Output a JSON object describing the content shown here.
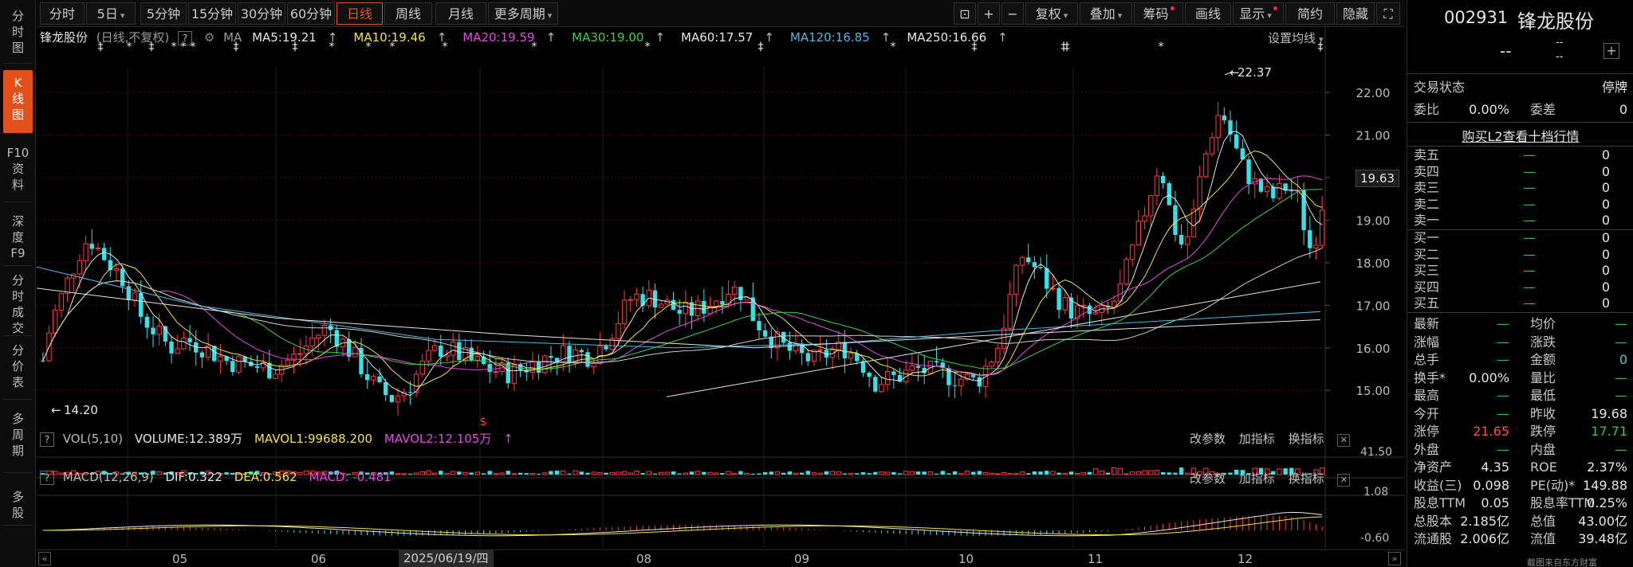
{
  "left_nav": [
    {
      "id": "fenshi",
      "lines": [
        "分",
        "时",
        "图"
      ],
      "active": false
    },
    {
      "id": "kline",
      "lines": [
        "K",
        "线",
        "图"
      ],
      "active": true
    },
    {
      "id": "f10",
      "lines": [
        "F10",
        "资",
        "料"
      ],
      "active": false
    },
    {
      "id": "depth",
      "lines": [
        "深",
        "度",
        "F9"
      ],
      "active": false
    },
    {
      "id": "trades",
      "lines": [
        "分",
        "时",
        "成",
        "交"
      ],
      "active": false
    },
    {
      "id": "pricetable",
      "lines": [
        "分",
        "价",
        "表"
      ],
      "active": false
    },
    {
      "id": "multiperiod",
      "lines": [
        "多",
        "周",
        "期"
      ],
      "active": false
    },
    {
      "id": "multistock",
      "lines": [
        "多",
        "股"
      ],
      "active": false
    }
  ],
  "toolbar": {
    "periods": [
      "分时",
      "5日",
      "5分钟",
      "15分钟",
      "30分钟",
      "60分钟",
      "日线",
      "周线",
      "月线",
      "更多周期"
    ],
    "active_period": "日线",
    "tools": [
      "复权",
      "叠加",
      "筹码",
      "画线",
      "显示",
      "简约",
      "隐藏"
    ]
  },
  "stock": {
    "name": "锋龙股份",
    "code": "002931",
    "mode": "(日线,不复权)"
  },
  "ma_legend": {
    "prefix": "MA",
    "items": [
      {
        "label": "MA5:19.21",
        "color": "#e6e6e6"
      },
      {
        "label": "MA10:19.46",
        "color": "#f2e24a"
      },
      {
        "label": "MA20:19.59",
        "color": "#e14be0"
      },
      {
        "label": "MA30:19.00",
        "color": "#3fd23f"
      },
      {
        "label": "MA60:17.57",
        "color": "#e6e6e6"
      },
      {
        "label": "MA120:16.85",
        "color": "#4fb7e8"
      },
      {
        "label": "MA250:16.66",
        "color": "#e6e6e6"
      }
    ],
    "arrow_up": "↑",
    "settings": "设置均线"
  },
  "price_chart": {
    "y_ticks": [
      "22.00",
      "21.00",
      "20.00",
      "19.00",
      "18.00",
      "17.00",
      "16.00",
      "15.00"
    ],
    "last_price": "19.63",
    "high_label": "22.37",
    "low_label": "14.20",
    "marker_star": "*",
    "marker_dagger": "‡",
    "dollar_marker": "$"
  },
  "volume_panel": {
    "name": "VOL(5,10)",
    "volume": "VOLUME:12.389万",
    "mavol1": "MAVOL1:99688.200",
    "mavol2": "MAVOL2:12.105万",
    "y_top": "41.50",
    "tools": [
      "改参数",
      "加指标",
      "换指标"
    ]
  },
  "macd_panel": {
    "name": "MACD(12,26,9)",
    "dif": "DIF:0.322",
    "dea": "DEA:0.562",
    "macd": "MACD: -0.481",
    "y_top": "1.08",
    "y_bottom": "-0.60",
    "tools": [
      "改参数",
      "加指标",
      "换指标"
    ]
  },
  "x_axis": {
    "months": [
      "05",
      "06",
      "08",
      "09",
      "10",
      "11",
      "12"
    ],
    "cursor_date": "2025/06/19/四"
  },
  "quote": {
    "price": "--",
    "change_top": "--",
    "change_bottom": "--",
    "status_label": "交易状态",
    "status_value": "停牌",
    "weibi_label": "委比",
    "weibi_value": "0.00%",
    "weicha_label": "委差",
    "weicha_value": "0",
    "l2_link": "购买L2查看十档行情",
    "asks": [
      {
        "name": "卖五",
        "price": "—",
        "vol": "0"
      },
      {
        "name": "卖四",
        "price": "—",
        "vol": "0"
      },
      {
        "name": "卖三",
        "price": "—",
        "vol": "0"
      },
      {
        "name": "卖二",
        "price": "—",
        "vol": "0"
      },
      {
        "name": "卖一",
        "price": "—",
        "vol": "0"
      }
    ],
    "bids": [
      {
        "name": "买一",
        "price": "—",
        "vol": "0"
      },
      {
        "name": "买二",
        "price": "—",
        "vol": "0"
      },
      {
        "name": "买三",
        "price": "—",
        "vol": "0"
      },
      {
        "name": "买四",
        "price": "—",
        "vol": "0"
      },
      {
        "name": "买五",
        "price": "—",
        "vol": "0"
      }
    ],
    "stats": [
      {
        "l1": "最新",
        "v1": "—",
        "c1": "green",
        "l2": "均价",
        "v2": "—",
        "c2": "green"
      },
      {
        "l1": "涨幅",
        "v1": "—",
        "c1": "green",
        "l2": "涨跌",
        "v2": "—",
        "c2": "green"
      },
      {
        "l1": "总手",
        "v1": "—",
        "c1": "green",
        "l2": "金额",
        "v2": "0",
        "c2": "cyan"
      },
      {
        "l1": "换手*",
        "v1": "0.00%",
        "c1": "white",
        "l2": "量比",
        "v2": "—",
        "c2": "green"
      },
      {
        "l1": "最高",
        "v1": "—",
        "c1": "green",
        "l2": "最低",
        "v2": "—",
        "c2": "green"
      },
      {
        "l1": "今开",
        "v1": "—",
        "c1": "green",
        "l2": "昨收",
        "v2": "19.68",
        "c2": "white"
      },
      {
        "l1": "涨停",
        "v1": "21.65",
        "c1": "red",
        "l2": "跌停",
        "v2": "17.71",
        "c2": "green"
      },
      {
        "l1": "外盘",
        "v1": "—",
        "c1": "green",
        "l2": "内盘",
        "v2": "—",
        "c2": "green"
      },
      {
        "l1": "净资产",
        "v1": "4.35",
        "c1": "white",
        "l2": "ROE",
        "v2": "2.37%",
        "c2": "white"
      },
      {
        "l1": "收益(三)",
        "v1": "0.098",
        "c1": "white",
        "l2": "PE(动)*",
        "v2": "149.88",
        "c2": "white"
      },
      {
        "l1": "股息TTM",
        "v1": "0.05",
        "c1": "white",
        "l2": "股息率TTM",
        "v2": "0.25%",
        "c2": "white"
      },
      {
        "l1": "总股本",
        "v1": "2.185亿",
        "c1": "white",
        "l2": "总值",
        "v2": "43.00亿",
        "c2": "white"
      },
      {
        "l1": "流通股",
        "v1": "2.006亿",
        "c1": "white",
        "l2": "流值",
        "v2": "39.48亿",
        "c2": "white"
      }
    ]
  },
  "watermark": "截图来自东方财富"
}
